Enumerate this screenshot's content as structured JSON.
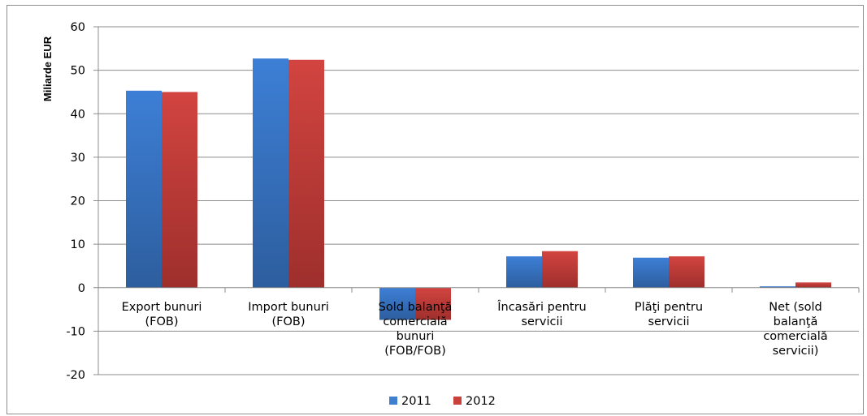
{
  "chart_data": {
    "type": "bar",
    "ylabel": "Miliarde EUR",
    "ylim": [
      -20,
      60
    ],
    "yticks": [
      -20,
      -10,
      0,
      10,
      20,
      30,
      40,
      50,
      60
    ],
    "grid": true,
    "legend_position": "bottom",
    "categories": [
      [
        "Export bunuri",
        "(FOB)"
      ],
      [
        "Import bunuri",
        "(FOB)"
      ],
      [
        "Sold balanţă",
        "comercială",
        "bunuri",
        "(FOB/FOB)"
      ],
      [
        "Încasări pentru",
        "servicii"
      ],
      [
        "Plăţi pentru",
        "servicii"
      ],
      [
        "Net (sold",
        "balanţă",
        "comercială",
        "servicii)"
      ]
    ],
    "series": [
      {
        "name": "2011",
        "color": "#3f7fcf",
        "values": [
          45.3,
          52.7,
          -7.4,
          7.2,
          6.9,
          0.3
        ]
      },
      {
        "name": "2012",
        "color": "#c9403d",
        "values": [
          45.0,
          52.4,
          -7.4,
          8.4,
          7.2,
          1.2
        ]
      }
    ]
  }
}
